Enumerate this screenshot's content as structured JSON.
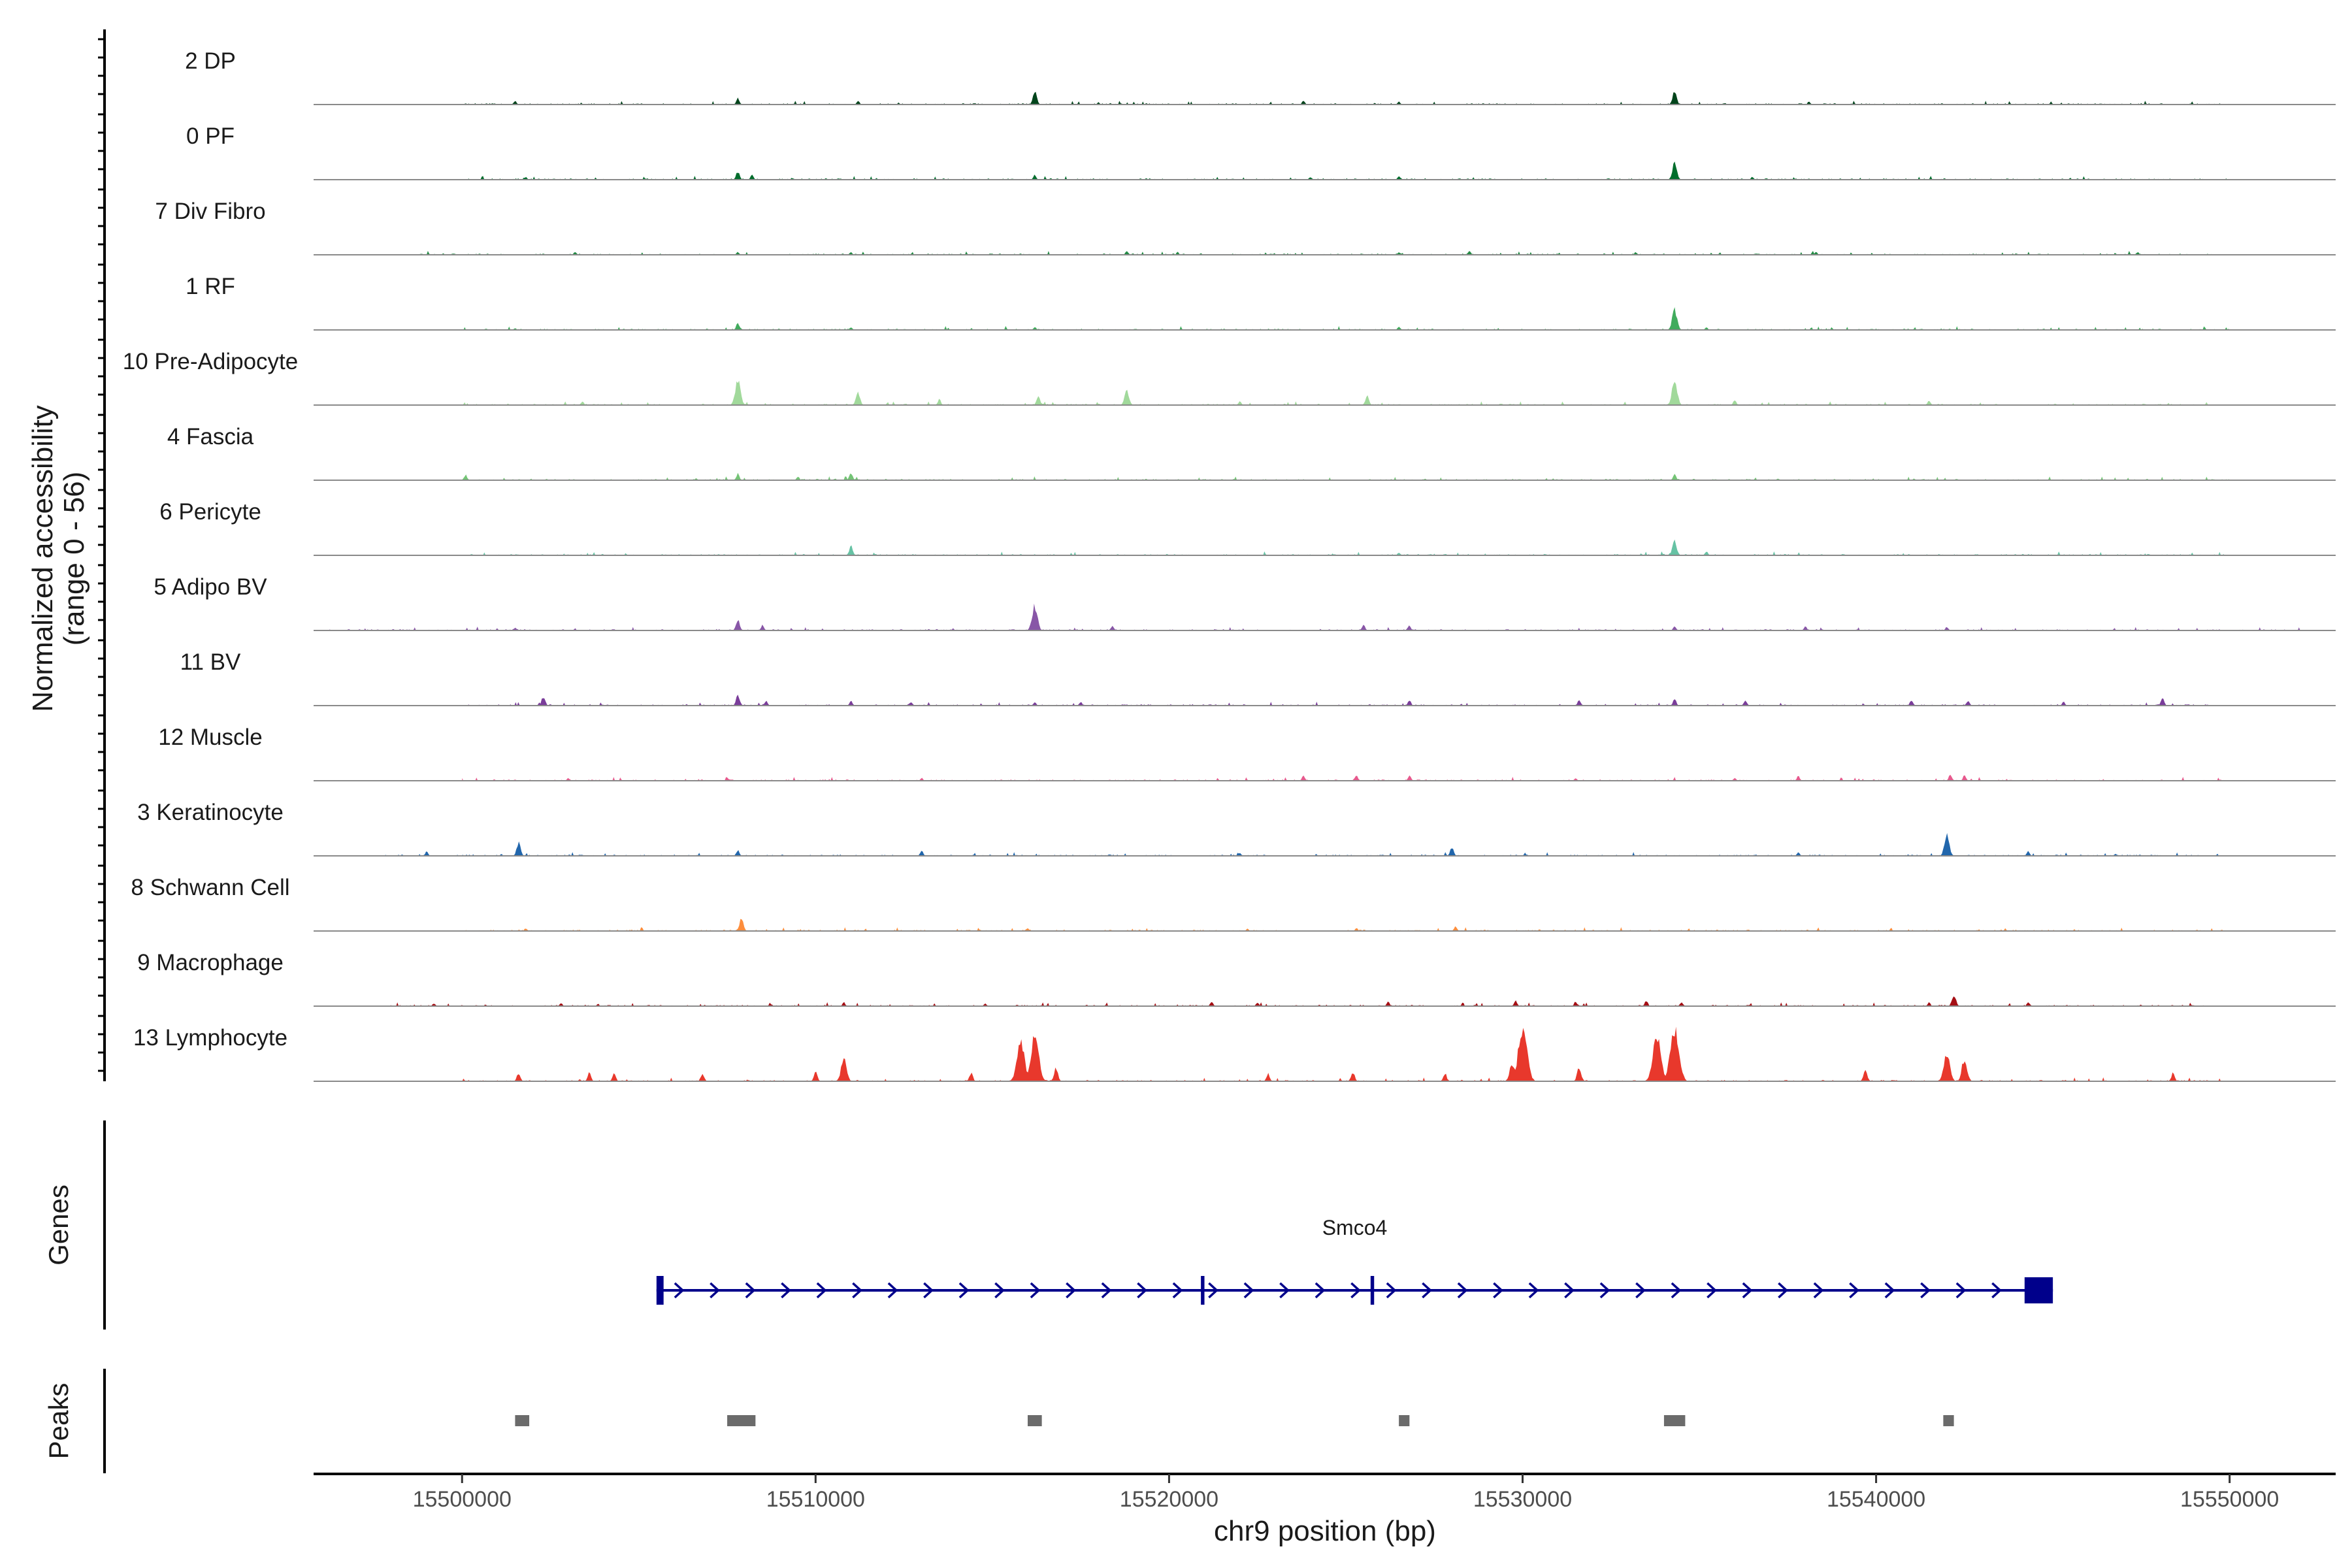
{
  "chart_data": {
    "type": "area",
    "title": "",
    "chromosome": "chr9",
    "xlabel": "chr9 position (bp)",
    "ylabel": "Normalized accessibility",
    "ylabel_sub": "(range 0 - 56)",
    "y_range": [
      0,
      56
    ],
    "xlim": [
      15495800,
      15553000
    ],
    "x_ticks": [
      {
        "value": 15500000,
        "label": "15500000"
      },
      {
        "value": 15510000,
        "label": "15510000"
      },
      {
        "value": 15520000,
        "label": "15520000"
      },
      {
        "value": 15530000,
        "label": "15530000"
      },
      {
        "value": 15540000,
        "label": "15540000"
      },
      {
        "value": 15550000,
        "label": "15550000"
      }
    ],
    "series": [
      {
        "name": "2 DP",
        "color": "#00441b",
        "range": [
          15500000,
          15550000
        ],
        "peaks": [
          [
            15501500,
            4
          ],
          [
            15507800,
            7
          ],
          [
            15511200,
            4
          ],
          [
            15516200,
            14
          ],
          [
            15523800,
            4
          ],
          [
            15526500,
            3
          ],
          [
            15534300,
            14
          ],
          [
            15538100,
            3
          ]
        ]
      },
      {
        "name": "0 PF",
        "color": "#006d2c",
        "range": [
          15500000,
          15550000
        ],
        "peaks": [
          [
            15501800,
            3
          ],
          [
            15507800,
            9
          ],
          [
            15508200,
            5
          ],
          [
            15516200,
            5
          ],
          [
            15524000,
            3
          ],
          [
            15526500,
            4
          ],
          [
            15534300,
            18
          ],
          [
            15536500,
            3
          ]
        ]
      },
      {
        "name": "7 Div Fibro",
        "color": "#238b45",
        "range": [
          15498700,
          15549500
        ],
        "peaks": [
          [
            15503200,
            3
          ],
          [
            15507800,
            3
          ],
          [
            15511000,
            3
          ],
          [
            15518800,
            4
          ],
          [
            15526500,
            3
          ],
          [
            15528500,
            4
          ],
          [
            15533200,
            3
          ],
          [
            15538300,
            3
          ],
          [
            15547400,
            3
          ]
        ]
      },
      {
        "name": "1 RF",
        "color": "#41ab5d",
        "range": [
          15500000,
          15550000
        ],
        "peaks": [
          [
            15501500,
            2
          ],
          [
            15507800,
            8
          ],
          [
            15511000,
            3
          ],
          [
            15516200,
            3
          ],
          [
            15526500,
            4
          ],
          [
            15534300,
            22
          ],
          [
            15535200,
            3
          ]
        ]
      },
      {
        "name": "10 Pre-Adipocyte",
        "color": "#a1d99b",
        "range": [
          15500000,
          15550000
        ],
        "peaks": [
          [
            15503400,
            4
          ],
          [
            15507800,
            26
          ],
          [
            15511200,
            14
          ],
          [
            15513500,
            6
          ],
          [
            15516300,
            10
          ],
          [
            15518800,
            17
          ],
          [
            15522000,
            4
          ],
          [
            15525600,
            10
          ],
          [
            15534300,
            26
          ],
          [
            15536000,
            5
          ],
          [
            15541500,
            5
          ]
        ]
      },
      {
        "name": "4 Fascia",
        "color": "#74c476",
        "range": [
          15500000,
          15550000
        ],
        "peaks": [
          [
            15500100,
            6
          ],
          [
            15507800,
            7
          ],
          [
            15509500,
            4
          ],
          [
            15511000,
            8
          ],
          [
            15534300,
            6
          ]
        ]
      },
      {
        "name": "6 Pericyte",
        "color": "#66c2a4",
        "range": [
          15500000,
          15550000
        ],
        "peaks": [
          [
            15511000,
            10
          ],
          [
            15526500,
            3
          ],
          [
            15534300,
            16
          ],
          [
            15535200,
            4
          ]
        ]
      },
      {
        "name": "5 Adipo BV",
        "color": "#8856a7",
        "range": [
          15496000,
          15552000
        ],
        "peaks": [
          [
            15501500,
            3
          ],
          [
            15507800,
            12
          ],
          [
            15508500,
            6
          ],
          [
            15516200,
            26
          ],
          [
            15518400,
            5
          ],
          [
            15525500,
            6
          ],
          [
            15526800,
            5
          ],
          [
            15534300,
            5
          ],
          [
            15538000,
            4
          ],
          [
            15542000,
            4
          ]
        ]
      },
      {
        "name": "11 BV",
        "color": "#7a3d9a",
        "range": [
          15500000,
          15550000
        ],
        "peaks": [
          [
            15502300,
            10
          ],
          [
            15507800,
            11
          ],
          [
            15508600,
            5
          ],
          [
            15511000,
            5
          ],
          [
            15512700,
            4
          ],
          [
            15516200,
            4
          ],
          [
            15517500,
            4
          ],
          [
            15526800,
            6
          ],
          [
            15531600,
            6
          ],
          [
            15534300,
            7
          ],
          [
            15536300,
            6
          ],
          [
            15541000,
            6
          ],
          [
            15542600,
            5
          ],
          [
            15545300,
            4
          ],
          [
            15548100,
            8
          ]
        ]
      },
      {
        "name": "12 Muscle",
        "color": "#e7598d",
        "range": [
          15500000,
          15550000
        ],
        "peaks": [
          [
            15503000,
            3
          ],
          [
            15507500,
            3
          ],
          [
            15513000,
            3
          ],
          [
            15523800,
            6
          ],
          [
            15525300,
            6
          ],
          [
            15526800,
            6
          ],
          [
            15531500,
            3
          ],
          [
            15536000,
            3
          ],
          [
            15537800,
            5
          ],
          [
            15542100,
            7
          ],
          [
            15542500,
            6
          ]
        ]
      },
      {
        "name": "3 Keratinocyte",
        "color": "#2166ac",
        "range": [
          15497800,
          15550200
        ],
        "peaks": [
          [
            15499000,
            5
          ],
          [
            15501600,
            14
          ],
          [
            15507800,
            6
          ],
          [
            15513000,
            6
          ],
          [
            15522000,
            3
          ],
          [
            15528000,
            9
          ],
          [
            15537800,
            4
          ],
          [
            15542000,
            22
          ],
          [
            15544300,
            5
          ]
        ]
      },
      {
        "name": "8 Schwann Cell",
        "color": "#fd8d3c",
        "range": [
          15500000,
          15550000
        ],
        "peaks": [
          [
            15501800,
            3
          ],
          [
            15507900,
            14
          ],
          [
            15516000,
            3
          ],
          [
            15525300,
            3
          ],
          [
            15528100,
            5
          ]
        ]
      },
      {
        "name": "9 Macrophage",
        "color": "#a50f15",
        "range": [
          15497800,
          15550200
        ],
        "peaks": [
          [
            15499200,
            3
          ],
          [
            15502800,
            3
          ],
          [
            15510800,
            4
          ],
          [
            15514800,
            3
          ],
          [
            15521200,
            5
          ],
          [
            15522500,
            4
          ],
          [
            15526200,
            5
          ],
          [
            15529800,
            6
          ],
          [
            15531500,
            5
          ],
          [
            15533500,
            6
          ],
          [
            15534500,
            4
          ],
          [
            15541500,
            4
          ],
          [
            15542200,
            13
          ],
          [
            15544300,
            4
          ]
        ]
      },
      {
        "name": "13 Lymphocyte",
        "color": "#e8382c",
        "range": [
          15500000,
          15550000
        ],
        "peaks": [
          [
            15501600,
            9
          ],
          [
            15503600,
            9
          ],
          [
            15504300,
            9
          ],
          [
            15506800,
            9
          ],
          [
            15510000,
            10
          ],
          [
            15510800,
            26
          ],
          [
            15514400,
            9
          ],
          [
            15515800,
            44
          ],
          [
            15516200,
            48
          ],
          [
            15516800,
            14
          ],
          [
            15522800,
            8
          ],
          [
            15525200,
            10
          ],
          [
            15527800,
            9
          ],
          [
            15529700,
            20
          ],
          [
            15530000,
            56
          ],
          [
            15531600,
            15
          ],
          [
            15533800,
            50
          ],
          [
            15534300,
            56
          ],
          [
            15539700,
            12
          ],
          [
            15542000,
            31
          ],
          [
            15542500,
            25
          ],
          [
            15548400,
            9
          ]
        ]
      }
    ],
    "genes": {
      "label": "Genes",
      "items": [
        {
          "name": "Smco4",
          "strand": "+",
          "start": 15505500,
          "end": 15545000,
          "exons": [
            [
              15505500,
              15505700
            ],
            [
              15520900,
              15521000
            ],
            [
              15525700,
              15525800
            ],
            [
              15544200,
              15545000
            ]
          ]
        }
      ]
    },
    "peaks_track": {
      "label": "Peaks",
      "regions": [
        [
          15501500,
          15501900
        ],
        [
          15507500,
          15508300
        ],
        [
          15516000,
          15516400
        ],
        [
          15526500,
          15526800
        ],
        [
          15534000,
          15534600
        ],
        [
          15541900,
          15542200
        ]
      ]
    }
  }
}
